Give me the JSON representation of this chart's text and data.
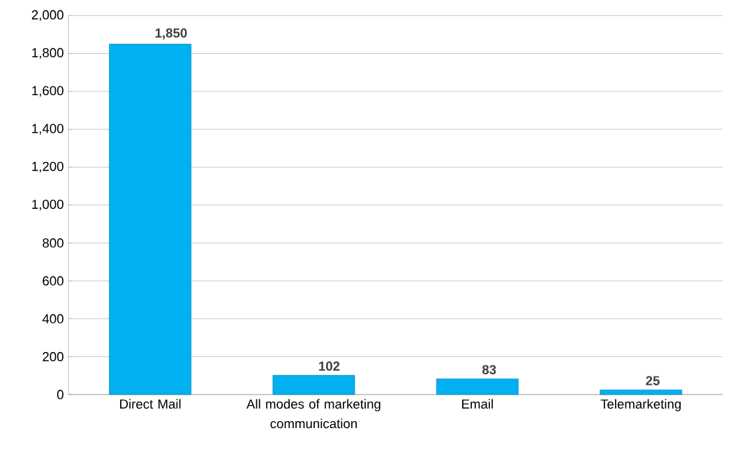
{
  "chart_data": {
    "type": "bar",
    "categories": [
      "Direct Mail",
      "All modes of marketing communication",
      "Email",
      "Telemarketing"
    ],
    "values": [
      1850,
      102,
      83,
      25
    ],
    "color": "#00b0f0",
    "ylim": [
      0,
      2000
    ],
    "yticks": [
      0,
      200,
      400,
      600,
      800,
      {
        "value": 1000,
        "label": "1,000"
      },
      {
        "value": 1200,
        "label": "1,200"
      },
      {
        "value": 1400,
        "label": "1,400"
      },
      {
        "value": 1600,
        "label": "1,600"
      },
      {
        "value": 1800,
        "label": "1,800"
      },
      {
        "value": 2000,
        "label": "2,000"
      }
    ],
    "value_labels": [
      "1,850",
      "102",
      "83",
      "25"
    ],
    "grid": "y"
  }
}
